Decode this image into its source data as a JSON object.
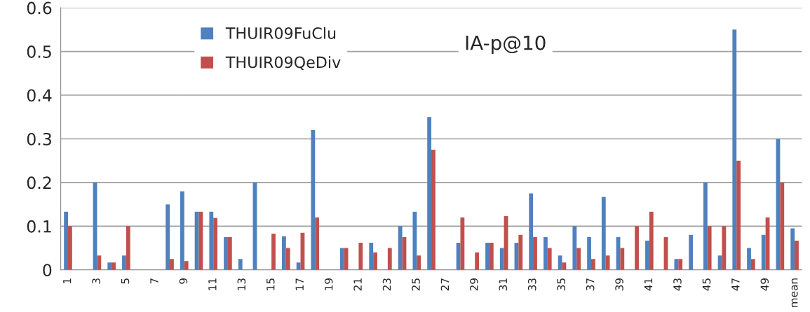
{
  "chart_data": {
    "type": "bar",
    "title": "IA-p@10",
    "categories": [
      "1",
      null,
      "3",
      null,
      "5",
      null,
      "7",
      null,
      "9",
      null,
      "11",
      null,
      "13",
      null,
      "15",
      null,
      "17",
      null,
      "19",
      null,
      "21",
      null,
      "23",
      null,
      "25",
      null,
      "27",
      null,
      "29",
      null,
      "31",
      null,
      "33",
      null,
      "35",
      null,
      "37",
      null,
      "39",
      null,
      "41",
      null,
      "43",
      null,
      "45",
      null,
      "47",
      null,
      "49",
      null,
      "mean"
    ],
    "series": [
      {
        "name": "THUIR09FuClu",
        "color": "#4f81bd",
        "values": [
          0.133,
          0,
          0.2,
          0.017,
          0.033,
          0,
          0,
          0.15,
          0.18,
          0.133,
          0.133,
          0.075,
          0.025,
          0.2,
          0,
          0.077,
          0.017,
          0.32,
          0,
          0.05,
          0,
          0.062,
          0,
          0.1,
          0.133,
          0.35,
          0,
          0.062,
          0,
          0.062,
          0.05,
          0.062,
          0.175,
          0.075,
          0.033,
          0.1,
          0.075,
          0.167,
          0.075,
          0,
          0.067,
          0,
          0.025,
          0.08,
          0.2,
          0.033,
          0.55,
          0.05,
          0.08,
          0.3,
          0.095
        ]
      },
      {
        "name": "THUIR09QeDiv",
        "color": "#c0504d",
        "values": [
          0.1,
          0,
          0.033,
          0.017,
          0.1,
          0,
          0,
          0.025,
          0.02,
          0.133,
          0.119,
          0.075,
          0,
          0,
          0.083,
          0.05,
          0.085,
          0.12,
          0,
          0.05,
          0.062,
          0.04,
          0.05,
          0.075,
          0.033,
          0.275,
          0,
          0.12,
          0.04,
          0.062,
          0.123,
          0.08,
          0.075,
          0.05,
          0.017,
          0.05,
          0.025,
          0.033,
          0.05,
          0.1,
          0.133,
          0.075,
          0.025,
          0,
          0.1,
          0.1,
          0.25,
          0.025,
          0.12,
          0.2,
          0.067
        ]
      }
    ],
    "ylim": [
      0,
      0.6
    ],
    "yticks": [
      0,
      0.1,
      0.2,
      0.3,
      0.4,
      0.5,
      0.6
    ],
    "grid": "y",
    "legend": "top left"
  }
}
